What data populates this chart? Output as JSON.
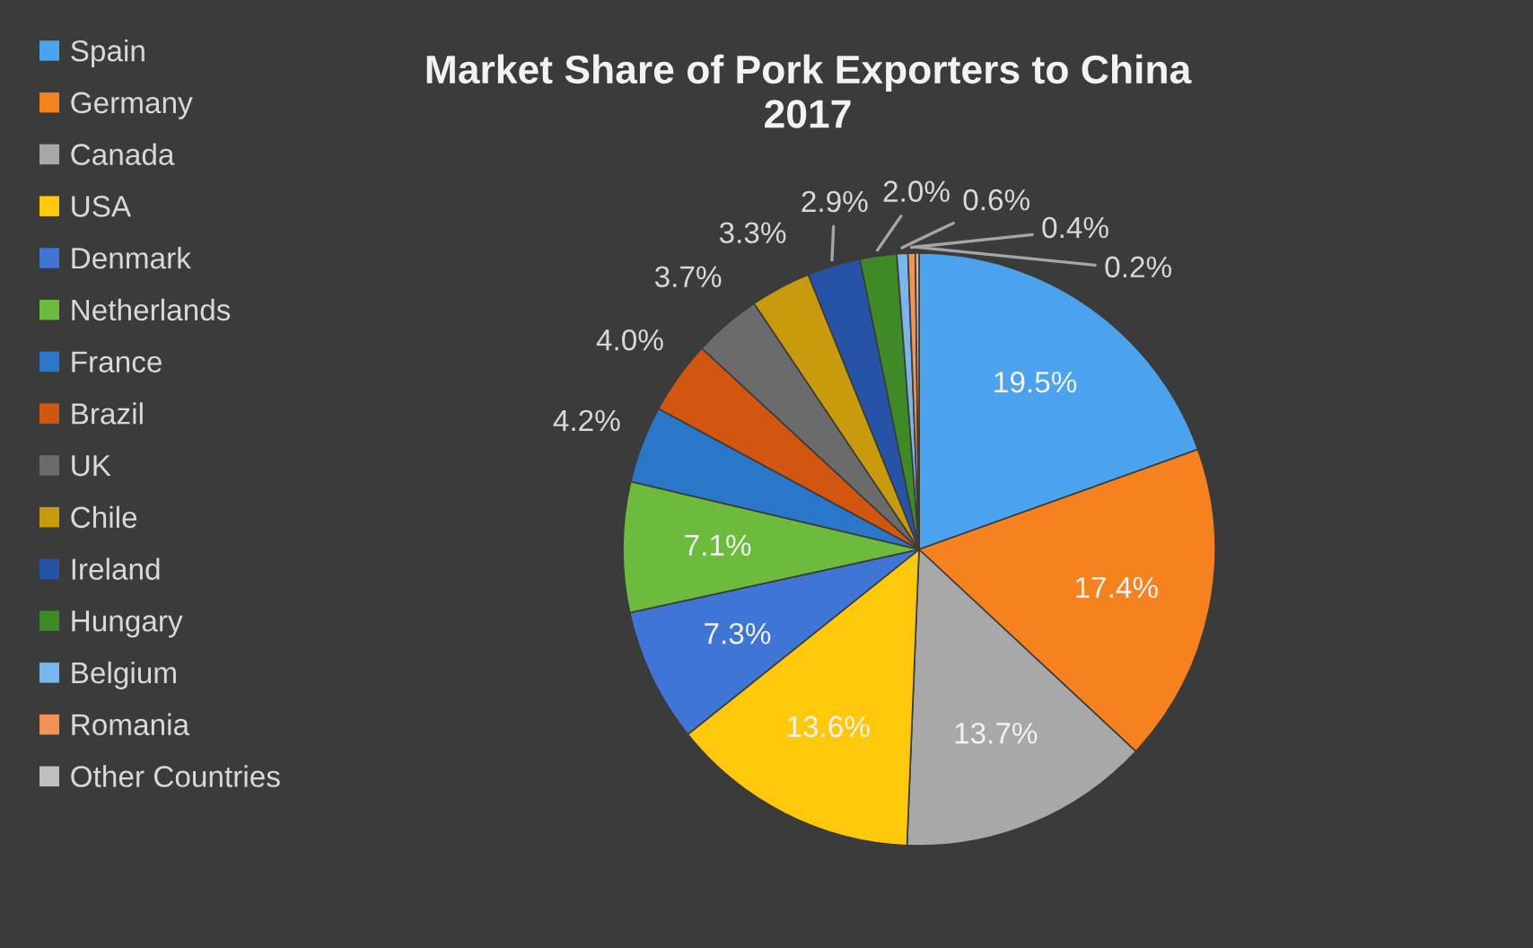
{
  "chart_data": {
    "type": "pie",
    "title": "Market Share of Pork Exporters to China\n2017",
    "categories": [
      "Spain",
      "Germany",
      "Canada",
      "USA",
      "Denmark",
      "Netherlands",
      "France",
      "Brazil",
      "UK",
      "Chile",
      "Ireland",
      "Hungary",
      "Belgium",
      "Romania",
      "Other Countries"
    ],
    "values": [
      19.5,
      17.4,
      13.7,
      13.6,
      7.3,
      7.1,
      4.2,
      4.0,
      3.7,
      3.3,
      2.9,
      2.0,
      0.6,
      0.4,
      0.2
    ],
    "colors": [
      "#4aa3ec",
      "#f5821f",
      "#a8a8a8",
      "#ffc80a",
      "#3f76d6",
      "#6dbb3c",
      "#2a76c9",
      "#d2560f",
      "#6b6b6b",
      "#c89a0c",
      "#2653a8",
      "#3f8a27",
      "#79b6ec",
      "#f39252",
      "#bfbfbf"
    ],
    "value_labels": [
      "19.5%",
      "17.4%",
      "13.7%",
      "13.6%",
      "7.3%",
      "7.1%",
      "4.2%",
      "4.0%",
      "3.7%",
      "3.3%",
      "2.9%",
      "2.0%",
      "0.6%",
      "0.4%",
      "0.2%"
    ],
    "legend": "left"
  }
}
